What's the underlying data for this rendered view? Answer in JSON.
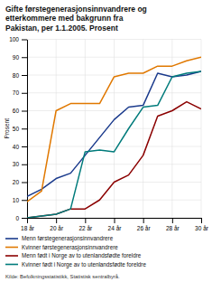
{
  "chart_data": {
    "type": "line",
    "title": "Gifte førstegenerasjonsinnvandrere og\netterkommere med bakgrunn fra\nPakistan, per 1.1.2005. Prosent",
    "ylabel": "Prosent",
    "source": "Kilde: Befolkningsstatistikk, Statistisk sentralbyrå.",
    "x": [
      18,
      19,
      20,
      21,
      22,
      23,
      24,
      25,
      26,
      27,
      28,
      29,
      30
    ],
    "series": [
      {
        "name": "Menn førstegenerasjonsinnvandrere",
        "color": "#1a3a8c",
        "values": [
          12,
          16,
          22,
          25,
          35,
          45,
          55,
          62,
          63,
          81,
          79,
          80,
          82
        ]
      },
      {
        "name": "Kvinner førstegenerasjonsinnvandrere",
        "color": "#e07800",
        "values": [
          9,
          15,
          60,
          64,
          64,
          64,
          79,
          81,
          81,
          85,
          85,
          88,
          90
        ]
      },
      {
        "name": "Menn født i Norge av to utenlandsfødte foreldre",
        "color": "#8b0000",
        "values": [
          0,
          1,
          2,
          5,
          5,
          10,
          20,
          24,
          35,
          57,
          60,
          65,
          61
        ]
      },
      {
        "name": "Kvinner født i Norge av to utenlandsfødte foreldre",
        "color": "#007b7b",
        "values": [
          0,
          1,
          2,
          5,
          37,
          38,
          37,
          50,
          62,
          63,
          79,
          81,
          82
        ]
      }
    ],
    "xlim": [
      18,
      30
    ],
    "ylim": [
      0,
      100
    ],
    "xticks": [
      {
        "value": 18,
        "label": "18 år"
      },
      {
        "value": 20,
        "label": "20 år"
      },
      {
        "value": 22,
        "label": "22 år"
      },
      {
        "value": 24,
        "label": "24 år"
      },
      {
        "value": 26,
        "label": "26 år"
      },
      {
        "value": 28,
        "label": "28 år"
      },
      {
        "value": 30,
        "label": "30 år"
      }
    ],
    "yticks": [
      0,
      10,
      20,
      30,
      40,
      50,
      60,
      70,
      80,
      90,
      100
    ],
    "grid": true,
    "legend": "bottom"
  }
}
